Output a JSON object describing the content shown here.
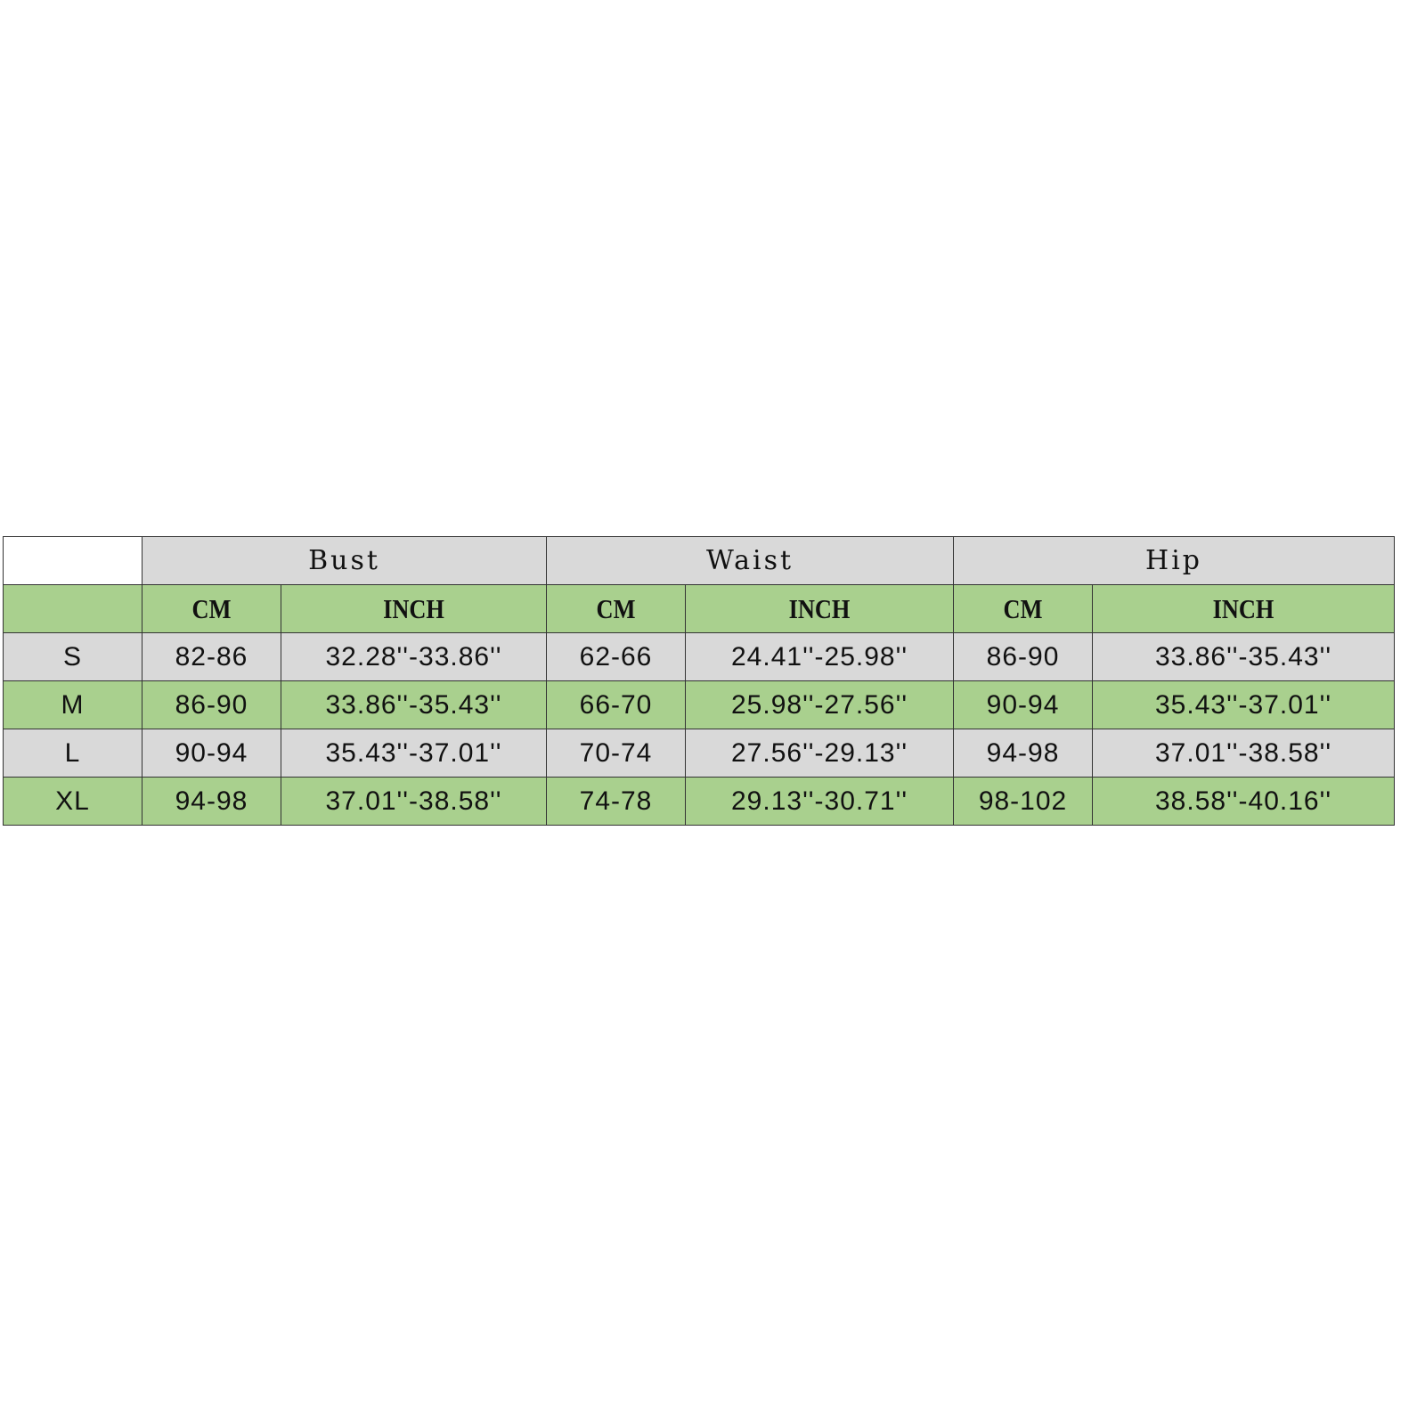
{
  "groups": [
    "Bust",
    "Waist",
    "Hip"
  ],
  "units": {
    "cm": "CM",
    "inch": "INCH"
  },
  "rows": [
    {
      "size": "S",
      "bust_cm": "82-86",
      "bust_in": "32.28''-33.86''",
      "waist_cm": "62-66",
      "waist_in": "24.41''-25.98''",
      "hip_cm": "86-90",
      "hip_in": "33.86''-35.43''"
    },
    {
      "size": "M",
      "bust_cm": "86-90",
      "bust_in": "33.86''-35.43''",
      "waist_cm": "66-70",
      "waist_in": "25.98''-27.56''",
      "hip_cm": "90-94",
      "hip_in": "35.43''-37.01''"
    },
    {
      "size": "L",
      "bust_cm": "90-94",
      "bust_in": "35.43''-37.01''",
      "waist_cm": "70-74",
      "waist_in": "27.56''-29.13''",
      "hip_cm": "94-98",
      "hip_in": "37.01''-38.58''"
    },
    {
      "size": "XL",
      "bust_cm": "94-98",
      "bust_in": "37.01''-38.58''",
      "waist_cm": "74-78",
      "waist_in": "29.13''-30.71''",
      "hip_cm": "98-102",
      "hip_in": "38.58''-40.16''"
    }
  ],
  "colors": {
    "gray": "#d9d9d9",
    "green": "#a9d08e"
  }
}
